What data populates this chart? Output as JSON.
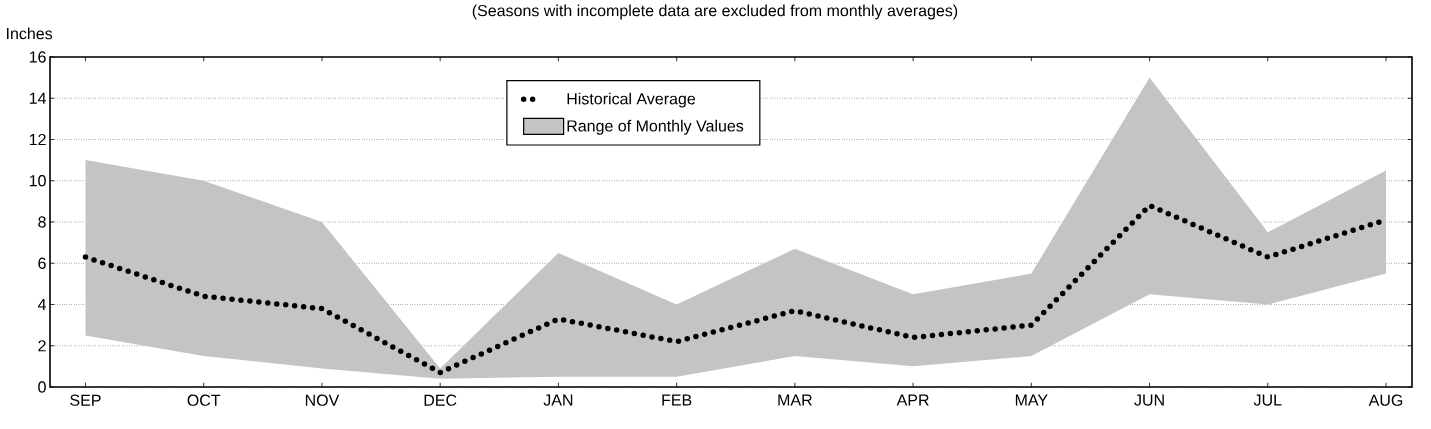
{
  "chart_data": {
    "type": "line",
    "subtitle": "(Seasons with incomplete data are excluded from monthly averages)",
    "ylabel": "Inches",
    "categories": [
      "SEP",
      "OCT",
      "NOV",
      "DEC",
      "JAN",
      "FEB",
      "MAR",
      "APR",
      "MAY",
      "JUN",
      "JUL",
      "AUG"
    ],
    "series": [
      {
        "name": "Historical Average",
        "color": "#000000",
        "line_style": "dotted",
        "values": [
          6.3,
          4.4,
          3.8,
          0.7,
          3.3,
          2.2,
          3.7,
          2.4,
          3.0,
          8.8,
          6.3,
          8.1
        ],
        "lower": [
          2.5,
          1.5,
          0.9,
          0.4,
          0.5,
          0.5,
          1.5,
          1.0,
          1.5,
          4.5,
          4.0,
          5.5
        ],
        "upper": [
          11.0,
          10.0,
          8.0,
          0.9,
          6.5,
          4.0,
          6.7,
          4.5,
          5.5,
          15.0,
          7.5,
          10.5
        ]
      }
    ],
    "annotations": [
      "Range of Monthly Values"
    ],
    "ylim": [
      0,
      16
    ],
    "yticks": [
      0,
      2,
      4,
      6,
      8,
      10,
      12,
      14,
      16
    ],
    "grid": "y",
    "legend": "top",
    "marker": "none"
  }
}
